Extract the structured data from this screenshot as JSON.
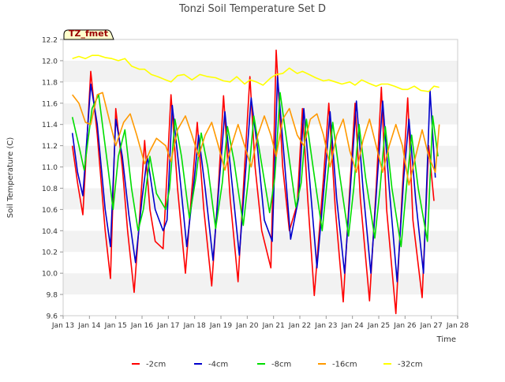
{
  "chart_data": {
    "type": "line",
    "title": "Tonzi Soil Temperature Set D",
    "xlabel": "Time",
    "ylabel": "Soil Temperature (C)",
    "xlim": [
      13,
      28
    ],
    "ylim": [
      9.6,
      12.2
    ],
    "x_ticks": [
      13,
      14,
      15,
      16,
      17,
      18,
      19,
      20,
      21,
      22,
      23,
      24,
      25,
      26,
      27,
      28
    ],
    "x_tick_labels": [
      "Jan 13",
      "Jan 14",
      "Jan 15",
      "Jan 16",
      "Jan 17",
      "Jan 18",
      "Jan 19",
      "Jan 20",
      "Jan 21",
      "Jan 22",
      "Jan 23",
      "Jan 24",
      "Jan 25",
      "Jan 26",
      "Jan 27",
      "Jan 28"
    ],
    "y_ticks": [
      9.6,
      9.8,
      10.0,
      10.2,
      10.4,
      10.6,
      10.8,
      11.0,
      11.2,
      11.4,
      11.6,
      11.8,
      12.0,
      12.2
    ],
    "y_tick_labels": [
      "9.6",
      "9.8",
      "10.0",
      "10.2",
      "10.4",
      "10.6",
      "10.8",
      "11.0",
      "11.2",
      "11.4",
      "11.6",
      "11.8",
      "12.0",
      "12.2"
    ],
    "grid": "alternating horizontal bands",
    "legend_position": "bottom",
    "annotation": "TZ_fmet",
    "series": [
      {
        "name": "-2cm",
        "color": "#ff0000",
        "x": [
          13.35,
          13.55,
          13.75,
          14.05,
          14.3,
          14.6,
          14.8,
          15.0,
          15.25,
          15.45,
          15.7,
          15.9,
          16.1,
          16.3,
          16.5,
          16.8,
          16.9,
          17.1,
          17.35,
          17.65,
          17.9,
          18.1,
          18.35,
          18.65,
          18.9,
          19.1,
          19.35,
          19.65,
          19.9,
          20.1,
          20.3,
          20.55,
          20.9,
          21.1,
          21.35,
          21.6,
          21.9,
          22.1,
          22.3,
          22.55,
          22.9,
          23.1,
          23.35,
          23.65,
          23.9,
          24.1,
          24.3,
          24.65,
          24.9,
          25.1,
          25.3,
          25.65,
          25.9,
          26.1,
          26.3,
          26.65,
          26.9,
          27.1
        ],
        "y": [
          11.2,
          10.85,
          10.55,
          11.9,
          11.3,
          10.4,
          9.95,
          11.55,
          11.0,
          10.4,
          9.82,
          10.5,
          11.25,
          10.6,
          10.3,
          10.23,
          10.7,
          11.68,
          10.8,
          10.0,
          10.8,
          11.42,
          10.6,
          9.88,
          10.8,
          11.67,
          10.7,
          9.92,
          11.0,
          11.85,
          11.0,
          10.4,
          10.05,
          12.1,
          11.0,
          10.4,
          10.65,
          11.55,
          10.7,
          9.79,
          10.9,
          11.6,
          10.6,
          9.73,
          10.8,
          11.6,
          10.7,
          9.74,
          10.8,
          11.75,
          10.6,
          9.62,
          10.8,
          11.65,
          10.5,
          9.77,
          11.2,
          10.68
        ]
      },
      {
        "name": "-4cm",
        "color": "#0000cc",
        "x": [
          13.35,
          13.55,
          13.75,
          14.05,
          14.3,
          14.6,
          14.8,
          15.0,
          15.25,
          15.5,
          15.75,
          16.0,
          16.2,
          16.5,
          16.8,
          16.95,
          17.15,
          17.4,
          17.7,
          17.95,
          18.15,
          18.4,
          18.7,
          18.95,
          19.15,
          19.4,
          19.7,
          19.95,
          20.15,
          20.4,
          20.65,
          20.95,
          21.15,
          21.4,
          21.65,
          21.95,
          22.15,
          22.4,
          22.65,
          22.95,
          23.15,
          23.4,
          23.7,
          23.95,
          24.15,
          24.4,
          24.7,
          24.95,
          25.15,
          25.4,
          25.7,
          25.95,
          26.15,
          26.4,
          26.7,
          26.95,
          27.15
        ],
        "y": [
          11.32,
          10.95,
          10.73,
          11.78,
          11.4,
          10.6,
          10.25,
          11.45,
          11.1,
          10.55,
          10.1,
          10.7,
          11.1,
          10.6,
          10.4,
          10.5,
          11.58,
          11.0,
          10.25,
          10.8,
          11.3,
          10.8,
          10.12,
          10.9,
          11.52,
          10.9,
          10.17,
          11.0,
          11.65,
          11.15,
          10.5,
          10.3,
          11.85,
          11.1,
          10.32,
          10.7,
          11.55,
          10.8,
          10.05,
          10.9,
          11.52,
          10.7,
          10.0,
          10.9,
          11.62,
          10.8,
          10.0,
          10.9,
          11.62,
          10.8,
          9.92,
          10.9,
          11.45,
          10.7,
          10.0,
          11.72,
          10.9
        ]
      },
      {
        "name": "-8cm",
        "color": "#00dd00",
        "x": [
          13.35,
          13.6,
          13.8,
          14.1,
          14.35,
          14.7,
          14.9,
          15.1,
          15.35,
          15.6,
          15.85,
          16.05,
          16.3,
          16.55,
          16.9,
          17.05,
          17.25,
          17.5,
          17.8,
          18.05,
          18.25,
          18.5,
          18.8,
          19.05,
          19.25,
          19.5,
          19.85,
          20.05,
          20.25,
          20.5,
          20.85,
          21.05,
          21.25,
          21.5,
          21.85,
          22.05,
          22.25,
          22.5,
          22.85,
          23.05,
          23.25,
          23.5,
          23.85,
          24.05,
          24.25,
          24.5,
          24.85,
          25.05,
          25.25,
          25.5,
          25.85,
          26.05,
          26.25,
          26.5,
          26.85,
          27.05,
          27.25
        ],
        "y": [
          11.47,
          11.2,
          10.97,
          11.55,
          11.68,
          11.0,
          10.6,
          11.1,
          11.35,
          10.8,
          10.4,
          10.6,
          11.1,
          10.75,
          10.6,
          10.8,
          11.45,
          11.1,
          10.52,
          10.9,
          11.32,
          11.0,
          10.42,
          10.85,
          11.38,
          11.05,
          10.45,
          10.9,
          11.48,
          11.1,
          10.57,
          10.9,
          11.7,
          11.25,
          10.62,
          10.85,
          11.45,
          11.0,
          10.4,
          10.9,
          11.42,
          10.95,
          10.35,
          10.8,
          11.4,
          10.9,
          10.33,
          10.8,
          11.38,
          10.8,
          10.25,
          10.8,
          11.3,
          10.8,
          10.3,
          11.48,
          11.1
        ]
      },
      {
        "name": "-16cm",
        "color": "#ff9900",
        "x": [
          13.35,
          13.6,
          13.85,
          14.05,
          14.3,
          14.5,
          14.75,
          15.0,
          15.3,
          15.55,
          15.8,
          16.1,
          16.3,
          16.55,
          16.9,
          17.1,
          17.35,
          17.65,
          17.9,
          18.15,
          18.4,
          18.65,
          18.9,
          19.15,
          19.4,
          19.65,
          19.9,
          20.15,
          20.4,
          20.65,
          20.9,
          21.1,
          21.35,
          21.6,
          21.9,
          22.15,
          22.4,
          22.65,
          22.9,
          23.15,
          23.4,
          23.65,
          23.9,
          24.15,
          24.4,
          24.65,
          24.9,
          25.15,
          25.4,
          25.65,
          25.9,
          26.15,
          26.4,
          26.65,
          26.9,
          27.15,
          27.3
        ],
        "y": [
          11.68,
          11.6,
          11.42,
          11.4,
          11.68,
          11.7,
          11.45,
          11.2,
          11.42,
          11.5,
          11.3,
          11.03,
          11.15,
          11.27,
          11.2,
          11.05,
          11.35,
          11.48,
          11.3,
          11.1,
          11.3,
          11.42,
          11.2,
          10.97,
          11.2,
          11.4,
          11.2,
          11.0,
          11.3,
          11.48,
          11.3,
          11.1,
          11.45,
          11.55,
          11.3,
          11.2,
          11.45,
          11.5,
          11.3,
          11.0,
          11.3,
          11.45,
          11.15,
          10.95,
          11.25,
          11.45,
          11.2,
          10.95,
          11.2,
          11.4,
          11.2,
          10.83,
          11.1,
          11.35,
          11.1,
          10.95,
          11.4
        ]
      },
      {
        "name": "-32cm",
        "color": "#ffff00",
        "x": [
          13.35,
          13.6,
          13.85,
          14.1,
          14.35,
          14.6,
          14.85,
          15.1,
          15.35,
          15.6,
          15.9,
          16.1,
          16.35,
          16.6,
          16.9,
          17.1,
          17.35,
          17.6,
          17.9,
          18.2,
          18.5,
          18.8,
          19.1,
          19.35,
          19.6,
          19.9,
          20.1,
          20.35,
          20.6,
          20.9,
          21.1,
          21.35,
          21.6,
          21.9,
          22.1,
          22.35,
          22.6,
          22.9,
          23.1,
          23.35,
          23.6,
          23.9,
          24.1,
          24.35,
          24.6,
          24.9,
          25.1,
          25.35,
          25.6,
          25.9,
          26.1,
          26.35,
          26.6,
          26.9,
          27.1,
          27.3
        ],
        "y": [
          12.02,
          12.04,
          12.02,
          12.05,
          12.05,
          12.03,
          12.02,
          12.0,
          12.02,
          11.95,
          11.92,
          11.92,
          11.87,
          11.85,
          11.82,
          11.8,
          11.86,
          11.87,
          11.82,
          11.87,
          11.85,
          11.84,
          11.81,
          11.8,
          11.85,
          11.78,
          11.82,
          11.8,
          11.77,
          11.84,
          11.87,
          11.88,
          11.93,
          11.88,
          11.9,
          11.87,
          11.84,
          11.81,
          11.82,
          11.8,
          11.78,
          11.8,
          11.77,
          11.82,
          11.79,
          11.76,
          11.78,
          11.78,
          11.76,
          11.73,
          11.73,
          11.76,
          11.72,
          11.71,
          11.76,
          11.75
        ]
      }
    ]
  }
}
